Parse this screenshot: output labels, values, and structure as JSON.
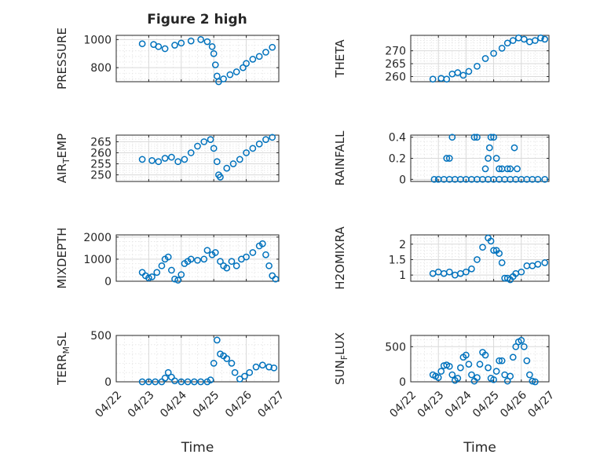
{
  "figure": {
    "title": "Figure 2 high"
  },
  "chart_data": [
    {
      "type": "scatter",
      "ylabel": "PRESSURE",
      "xlabel": "",
      "x_range": [
        "04/22",
        "04/27"
      ],
      "ylim": [
        700,
        1030
      ],
      "yticks": [
        800,
        1000
      ],
      "xticks": [
        "04/22",
        "04/23",
        "04/24",
        "04/25",
        "04/26",
        "04/27"
      ],
      "grid": true,
      "show_xtick_labels": false,
      "series": [
        {
          "values": [
            [
              0.8,
              970
            ],
            [
              1.15,
              965
            ],
            [
              1.3,
              950
            ],
            [
              1.5,
              935
            ],
            [
              1.8,
              960
            ],
            [
              2.0,
              975
            ],
            [
              2.3,
              990
            ],
            [
              2.6,
              1000
            ],
            [
              2.8,
              985
            ],
            [
              2.95,
              950
            ],
            [
              3.0,
              900
            ],
            [
              3.05,
              820
            ],
            [
              3.1,
              740
            ],
            [
              3.15,
              700
            ],
            [
              3.3,
              720
            ],
            [
              3.5,
              750
            ],
            [
              3.7,
              770
            ],
            [
              3.9,
              800
            ],
            [
              4.0,
              830
            ],
            [
              4.2,
              860
            ],
            [
              4.4,
              880
            ],
            [
              4.6,
              910
            ],
            [
              4.8,
              945
            ]
          ]
        }
      ]
    },
    {
      "type": "scatter",
      "ylabel": "THETA",
      "xlabel": "",
      "x_range": [
        "04/22",
        "04/27"
      ],
      "ylim": [
        258,
        276
      ],
      "yticks": [
        260,
        265,
        270
      ],
      "xticks": [
        "04/22",
        "04/23",
        "04/24",
        "04/25",
        "04/26",
        "04/27"
      ],
      "grid": true,
      "show_xtick_labels": false,
      "series": [
        {
          "values": [
            [
              0.8,
              259
            ],
            [
              1.1,
              259.3
            ],
            [
              1.3,
              259
            ],
            [
              1.5,
              261
            ],
            [
              1.7,
              261.5
            ],
            [
              1.9,
              260.5
            ],
            [
              2.1,
              262
            ],
            [
              2.4,
              264
            ],
            [
              2.7,
              267
            ],
            [
              3.0,
              269
            ],
            [
              3.3,
              271
            ],
            [
              3.5,
              273
            ],
            [
              3.7,
              274
            ],
            [
              3.9,
              275
            ],
            [
              4.1,
              274.5
            ],
            [
              4.3,
              273.5
            ],
            [
              4.5,
              274
            ],
            [
              4.7,
              275
            ],
            [
              4.85,
              274.5
            ]
          ]
        }
      ]
    },
    {
      "type": "scatter",
      "ylabel": "AIR_TEMP",
      "ylabel_main": "AIR",
      "ylabel_sub": "T",
      "ylabel_tail": "EMP",
      "xlabel": "",
      "x_range": [
        "04/22",
        "04/27"
      ],
      "ylim": [
        247,
        268
      ],
      "yticks": [
        250,
        255,
        260,
        265
      ],
      "xticks": [
        "04/22",
        "04/23",
        "04/24",
        "04/25",
        "04/26",
        "04/27"
      ],
      "grid": true,
      "show_xtick_labels": false,
      "series": [
        {
          "values": [
            [
              0.8,
              257
            ],
            [
              1.1,
              256.5
            ],
            [
              1.3,
              256
            ],
            [
              1.5,
              257.5
            ],
            [
              1.7,
              258
            ],
            [
              1.9,
              256
            ],
            [
              2.1,
              257
            ],
            [
              2.3,
              260
            ],
            [
              2.5,
              263
            ],
            [
              2.7,
              265
            ],
            [
              2.9,
              266
            ],
            [
              3.0,
              262
            ],
            [
              3.1,
              256
            ],
            [
              3.15,
              250
            ],
            [
              3.2,
              249
            ],
            [
              3.4,
              253
            ],
            [
              3.6,
              255
            ],
            [
              3.8,
              257
            ],
            [
              4.0,
              260
            ],
            [
              4.2,
              262
            ],
            [
              4.4,
              264
            ],
            [
              4.6,
              266
            ],
            [
              4.8,
              267
            ]
          ]
        }
      ]
    },
    {
      "type": "scatter",
      "ylabel": "RAINFALL",
      "xlabel": "",
      "x_range": [
        "04/22",
        "04/27"
      ],
      "ylim": [
        -0.02,
        0.42
      ],
      "yticks": [
        0,
        0.2,
        0.4
      ],
      "ytick_labels": [
        "0",
        "0.2",
        "0.4"
      ],
      "xticks": [
        "04/22",
        "04/23",
        "04/24",
        "04/25",
        "04/26",
        "04/27"
      ],
      "grid": true,
      "show_xtick_labels": false,
      "series": [
        {
          "values": [
            [
              0.85,
              0
            ],
            [
              1.0,
              0
            ],
            [
              1.2,
              0
            ],
            [
              1.4,
              0
            ],
            [
              1.6,
              0
            ],
            [
              1.8,
              0
            ],
            [
              2.0,
              0
            ],
            [
              2.2,
              0
            ],
            [
              2.4,
              0
            ],
            [
              2.6,
              0
            ],
            [
              2.8,
              0
            ],
            [
              3.0,
              0
            ],
            [
              3.2,
              0
            ],
            [
              3.4,
              0
            ],
            [
              3.6,
              0
            ],
            [
              3.8,
              0
            ],
            [
              4.0,
              0
            ],
            [
              4.2,
              0
            ],
            [
              4.4,
              0
            ],
            [
              4.6,
              0
            ],
            [
              4.85,
              0
            ],
            [
              1.3,
              0.2
            ],
            [
              1.4,
              0.2
            ],
            [
              1.5,
              0.4
            ],
            [
              2.3,
              0.4
            ],
            [
              2.4,
              0.4
            ],
            [
              2.7,
              0.1
            ],
            [
              2.8,
              0.2
            ],
            [
              2.85,
              0.3
            ],
            [
              2.9,
              0.4
            ],
            [
              3.0,
              0.4
            ],
            [
              3.1,
              0.2
            ],
            [
              3.2,
              0.1
            ],
            [
              3.3,
              0.1
            ],
            [
              3.5,
              0.1
            ],
            [
              3.6,
              0.1
            ],
            [
              3.75,
              0.3
            ],
            [
              3.85,
              0.1
            ]
          ]
        }
      ]
    },
    {
      "type": "scatter",
      "ylabel": "MIXDEPTH",
      "xlabel": "",
      "x_range": [
        "04/22",
        "04/27"
      ],
      "ylim": [
        0,
        2100
      ],
      "yticks": [
        0,
        1000,
        2000
      ],
      "xticks": [
        "04/22",
        "04/23",
        "04/24",
        "04/25",
        "04/26",
        "04/27"
      ],
      "grid": true,
      "show_xtick_labels": false,
      "series": [
        {
          "values": [
            [
              0.8,
              400
            ],
            [
              0.9,
              250
            ],
            [
              1.0,
              150
            ],
            [
              1.1,
              200
            ],
            [
              1.25,
              400
            ],
            [
              1.4,
              700
            ],
            [
              1.5,
              1000
            ],
            [
              1.6,
              1100
            ],
            [
              1.7,
              500
            ],
            [
              1.8,
              100
            ],
            [
              1.9,
              50
            ],
            [
              2.0,
              300
            ],
            [
              2.1,
              800
            ],
            [
              2.2,
              900
            ],
            [
              2.3,
              1000
            ],
            [
              2.5,
              950
            ],
            [
              2.7,
              1000
            ],
            [
              2.8,
              1400
            ],
            [
              2.95,
              1200
            ],
            [
              3.05,
              1300
            ],
            [
              3.2,
              900
            ],
            [
              3.3,
              700
            ],
            [
              3.4,
              600
            ],
            [
              3.55,
              900
            ],
            [
              3.7,
              700
            ],
            [
              3.85,
              1000
            ],
            [
              4.0,
              1100
            ],
            [
              4.2,
              1300
            ],
            [
              4.4,
              1600
            ],
            [
              4.5,
              1700
            ],
            [
              4.6,
              1200
            ],
            [
              4.7,
              700
            ],
            [
              4.8,
              250
            ],
            [
              4.9,
              100
            ]
          ]
        }
      ]
    },
    {
      "type": "scatter",
      "ylabel": "H2OMIXRA",
      "xlabel": "",
      "x_range": [
        "04/22",
        "04/27"
      ],
      "ylim": [
        0.8,
        2.3
      ],
      "yticks": [
        1,
        1.5,
        2
      ],
      "ytick_labels": [
        "1",
        "1.5",
        "2"
      ],
      "xticks": [
        "04/22",
        "04/23",
        "04/24",
        "04/25",
        "04/26",
        "04/27"
      ],
      "grid": true,
      "show_xtick_labels": false,
      "series": [
        {
          "values": [
            [
              0.8,
              1.05
            ],
            [
              1.0,
              1.1
            ],
            [
              1.2,
              1.05
            ],
            [
              1.4,
              1.1
            ],
            [
              1.6,
              1.0
            ],
            [
              1.8,
              1.05
            ],
            [
              2.0,
              1.1
            ],
            [
              2.2,
              1.2
            ],
            [
              2.4,
              1.5
            ],
            [
              2.6,
              1.9
            ],
            [
              2.8,
              2.2
            ],
            [
              2.9,
              2.1
            ],
            [
              3.0,
              1.8
            ],
            [
              3.1,
              1.8
            ],
            [
              3.2,
              1.7
            ],
            [
              3.3,
              1.4
            ],
            [
              3.4,
              0.9
            ],
            [
              3.5,
              0.9
            ],
            [
              3.6,
              0.85
            ],
            [
              3.7,
              0.95
            ],
            [
              3.8,
              1.05
            ],
            [
              4.0,
              1.1
            ],
            [
              4.2,
              1.3
            ],
            [
              4.4,
              1.3
            ],
            [
              4.6,
              1.35
            ],
            [
              4.85,
              1.4
            ]
          ]
        }
      ]
    },
    {
      "type": "scatter",
      "ylabel": "TERR_MSL",
      "ylabel_main": "TERR",
      "ylabel_sub": "M",
      "ylabel_tail": "SL",
      "xlabel": "Time",
      "x_range": [
        "04/22",
        "04/27"
      ],
      "ylim": [
        0,
        500
      ],
      "yticks": [
        0,
        500
      ],
      "xticks": [
        "04/22",
        "04/23",
        "04/24",
        "04/25",
        "04/26",
        "04/27"
      ],
      "grid": true,
      "show_xtick_labels": true,
      "series": [
        {
          "values": [
            [
              0.8,
              0
            ],
            [
              1.0,
              0
            ],
            [
              1.2,
              0
            ],
            [
              1.4,
              0
            ],
            [
              1.5,
              40
            ],
            [
              1.6,
              100
            ],
            [
              1.7,
              50
            ],
            [
              1.8,
              10
            ],
            [
              2.0,
              0
            ],
            [
              2.2,
              0
            ],
            [
              2.4,
              0
            ],
            [
              2.6,
              0
            ],
            [
              2.8,
              0
            ],
            [
              2.9,
              20
            ],
            [
              3.0,
              200
            ],
            [
              3.1,
              450
            ],
            [
              3.2,
              300
            ],
            [
              3.3,
              280
            ],
            [
              3.4,
              250
            ],
            [
              3.55,
              200
            ],
            [
              3.65,
              100
            ],
            [
              3.8,
              30
            ],
            [
              3.95,
              60
            ],
            [
              4.1,
              100
            ],
            [
              4.3,
              160
            ],
            [
              4.5,
              180
            ],
            [
              4.7,
              160
            ],
            [
              4.85,
              150
            ]
          ]
        }
      ]
    },
    {
      "type": "scatter",
      "ylabel": "SUN_FLUX",
      "ylabel_main": "SUN",
      "ylabel_sub": "F",
      "ylabel_tail": "LUX",
      "xlabel": "Time",
      "x_range": [
        "04/22",
        "04/27"
      ],
      "ylim": [
        0,
        660
      ],
      "yticks": [
        0,
        500
      ],
      "xticks": [
        "04/22",
        "04/23",
        "04/24",
        "04/25",
        "04/26",
        "04/27"
      ],
      "grid": true,
      "show_xtick_labels": true,
      "series": [
        {
          "values": [
            [
              0.8,
              100
            ],
            [
              0.9,
              80
            ],
            [
              1.0,
              60
            ],
            [
              1.1,
              150
            ],
            [
              1.2,
              230
            ],
            [
              1.3,
              240
            ],
            [
              1.4,
              220
            ],
            [
              1.5,
              100
            ],
            [
              1.6,
              20
            ],
            [
              1.7,
              50
            ],
            [
              1.8,
              200
            ],
            [
              1.9,
              350
            ],
            [
              2.0,
              380
            ],
            [
              2.1,
              250
            ],
            [
              2.2,
              100
            ],
            [
              2.3,
              10
            ],
            [
              2.4,
              60
            ],
            [
              2.5,
              250
            ],
            [
              2.6,
              420
            ],
            [
              2.7,
              380
            ],
            [
              2.8,
              200
            ],
            [
              2.9,
              50
            ],
            [
              3.0,
              30
            ],
            [
              3.1,
              150
            ],
            [
              3.2,
              300
            ],
            [
              3.3,
              300
            ],
            [
              3.4,
              100
            ],
            [
              3.5,
              10
            ],
            [
              3.6,
              80
            ],
            [
              3.7,
              350
            ],
            [
              3.8,
              500
            ],
            [
              3.9,
              570
            ],
            [
              4.0,
              590
            ],
            [
              4.1,
              500
            ],
            [
              4.2,
              300
            ],
            [
              4.3,
              100
            ],
            [
              4.4,
              10
            ],
            [
              4.5,
              0
            ]
          ]
        }
      ]
    }
  ]
}
